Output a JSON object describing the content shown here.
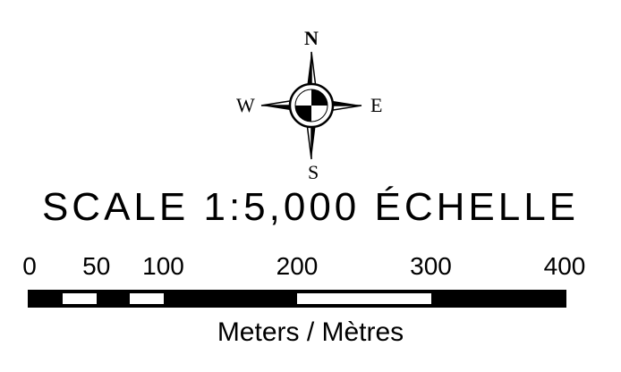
{
  "compass": {
    "north": "N",
    "west": "W",
    "east": "E",
    "south": "S",
    "icon": "compass-rose-icon"
  },
  "scale": {
    "title": "SCALE 1:5,000 ÉCHELLE",
    "ticks": [
      "0",
      "50",
      "100",
      "200",
      "300",
      "400"
    ],
    "units": "Meters  / Mètres"
  },
  "colors": {
    "ink": "#000000",
    "background": "#ffffff"
  }
}
